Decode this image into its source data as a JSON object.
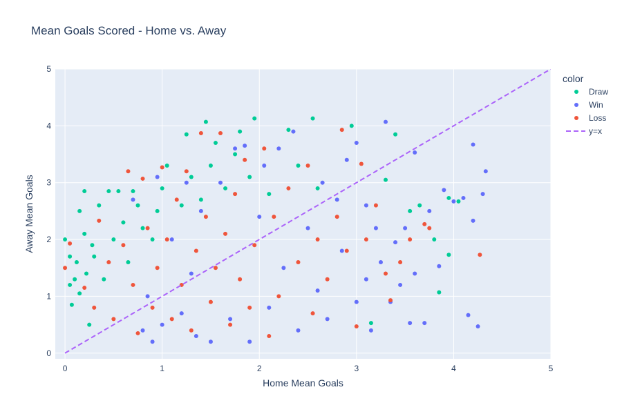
{
  "chart_data": {
    "type": "scatter",
    "title": "Mean Goals Scored - Home vs. Away",
    "xlabel": "Home Mean Goals",
    "ylabel": "Away Mean Goals",
    "xlim": [
      -0.1,
      5.0
    ],
    "ylim": [
      -0.1,
      5.0
    ],
    "xticks": [
      0,
      1,
      2,
      3,
      4,
      5
    ],
    "yticks": [
      0,
      1,
      2,
      3,
      4,
      5
    ],
    "grid": true,
    "plot_background": "#e5ecf6",
    "legend": {
      "title": "color",
      "placement": "right"
    },
    "series": [
      {
        "name": "Draw",
        "color": "#00cc96",
        "note_cloud": "dense cloud mostly x 0-2.5, y 0.5-3.2",
        "points": [
          [
            0.0,
            2.0
          ],
          [
            0.05,
            1.2
          ],
          [
            0.05,
            1.7
          ],
          [
            0.07,
            0.85
          ],
          [
            0.1,
            1.3
          ],
          [
            0.12,
            1.6
          ],
          [
            0.15,
            2.5
          ],
          [
            0.15,
            1.05
          ],
          [
            0.2,
            2.85
          ],
          [
            0.2,
            2.1
          ],
          [
            0.22,
            1.4
          ],
          [
            0.25,
            0.5
          ],
          [
            0.28,
            1.9
          ],
          [
            0.3,
            1.7
          ],
          [
            0.35,
            2.6
          ],
          [
            0.4,
            1.3
          ],
          [
            0.45,
            2.85
          ],
          [
            0.5,
            2.0
          ],
          [
            0.55,
            2.85
          ],
          [
            0.6,
            2.3
          ],
          [
            0.65,
            1.6
          ],
          [
            0.7,
            2.85
          ],
          [
            0.75,
            2.6
          ],
          [
            0.8,
            2.2
          ],
          [
            0.9,
            2.0
          ],
          [
            0.95,
            2.5
          ],
          [
            1.0,
            2.9
          ],
          [
            1.05,
            3.3
          ],
          [
            1.2,
            2.6
          ],
          [
            1.25,
            3.85
          ],
          [
            1.3,
            3.1
          ],
          [
            1.4,
            2.7
          ],
          [
            1.45,
            4.07
          ],
          [
            1.5,
            3.3
          ],
          [
            1.55,
            3.7
          ],
          [
            1.65,
            2.9
          ],
          [
            1.75,
            3.5
          ],
          [
            1.8,
            3.9
          ],
          [
            1.9,
            3.1
          ],
          [
            1.95,
            4.13
          ],
          [
            2.1,
            2.8
          ],
          [
            2.3,
            3.93
          ],
          [
            2.4,
            3.3
          ],
          [
            2.55,
            4.13
          ],
          [
            2.6,
            2.9
          ],
          [
            2.95,
            4.0
          ],
          [
            3.15,
            0.53
          ],
          [
            3.3,
            3.05
          ],
          [
            3.4,
            3.85
          ],
          [
            3.55,
            2.5
          ],
          [
            3.65,
            2.6
          ],
          [
            3.8,
            2.0
          ],
          [
            3.85,
            1.07
          ],
          [
            3.95,
            1.73
          ],
          [
            3.95,
            2.73
          ],
          [
            4.05,
            2.67
          ]
        ]
      },
      {
        "name": "Win",
        "color": "#636efa",
        "points": [
          [
            0.7,
            2.7
          ],
          [
            0.8,
            0.4
          ],
          [
            0.85,
            1.0
          ],
          [
            0.9,
            0.2
          ],
          [
            0.95,
            3.1
          ],
          [
            1.0,
            0.5
          ],
          [
            1.1,
            2.0
          ],
          [
            1.2,
            0.7
          ],
          [
            1.25,
            3.0
          ],
          [
            1.3,
            1.4
          ],
          [
            1.35,
            0.3
          ],
          [
            1.4,
            2.5
          ],
          [
            1.5,
            0.2
          ],
          [
            1.6,
            3.0
          ],
          [
            1.7,
            0.6
          ],
          [
            1.75,
            3.6
          ],
          [
            1.85,
            3.65
          ],
          [
            1.9,
            0.2
          ],
          [
            2.0,
            2.4
          ],
          [
            2.05,
            3.3
          ],
          [
            2.1,
            0.8
          ],
          [
            2.2,
            3.6
          ],
          [
            2.25,
            1.5
          ],
          [
            2.35,
            3.9
          ],
          [
            2.4,
            0.4
          ],
          [
            2.5,
            2.2
          ],
          [
            2.6,
            1.1
          ],
          [
            2.65,
            3.0
          ],
          [
            2.7,
            0.6
          ],
          [
            2.8,
            2.7
          ],
          [
            2.85,
            1.8
          ],
          [
            2.9,
            3.4
          ],
          [
            3.0,
            0.9
          ],
          [
            3.0,
            3.7
          ],
          [
            3.1,
            2.6
          ],
          [
            3.1,
            1.3
          ],
          [
            3.15,
            0.4
          ],
          [
            3.2,
            2.2
          ],
          [
            3.25,
            1.6
          ],
          [
            3.3,
            4.07
          ],
          [
            3.35,
            0.9
          ],
          [
            3.4,
            1.95
          ],
          [
            3.45,
            1.2
          ],
          [
            3.5,
            2.2
          ],
          [
            3.55,
            0.53
          ],
          [
            3.6,
            3.53
          ],
          [
            3.6,
            1.4
          ],
          [
            3.7,
            0.53
          ],
          [
            3.75,
            2.5
          ],
          [
            3.85,
            1.53
          ],
          [
            3.9,
            2.87
          ],
          [
            4.0,
            2.67
          ],
          [
            4.1,
            2.73
          ],
          [
            4.15,
            0.67
          ],
          [
            4.2,
            3.67
          ],
          [
            4.2,
            2.33
          ],
          [
            4.25,
            0.47
          ],
          [
            4.3,
            2.8
          ],
          [
            4.33,
            3.2
          ]
        ]
      },
      {
        "name": "Loss",
        "color": "#ef553b",
        "points": [
          [
            0.0,
            1.5
          ],
          [
            0.05,
            1.93
          ],
          [
            0.2,
            1.15
          ],
          [
            0.3,
            0.8
          ],
          [
            0.35,
            2.33
          ],
          [
            0.45,
            1.6
          ],
          [
            0.5,
            0.6
          ],
          [
            0.6,
            1.9
          ],
          [
            0.65,
            3.2
          ],
          [
            0.7,
            1.2
          ],
          [
            0.75,
            0.35
          ],
          [
            0.8,
            3.07
          ],
          [
            0.85,
            2.2
          ],
          [
            0.9,
            0.8
          ],
          [
            0.95,
            1.5
          ],
          [
            1.0,
            3.27
          ],
          [
            1.05,
            2.0
          ],
          [
            1.1,
            0.6
          ],
          [
            1.15,
            2.7
          ],
          [
            1.2,
            1.2
          ],
          [
            1.25,
            3.2
          ],
          [
            1.3,
            0.4
          ],
          [
            1.35,
            1.8
          ],
          [
            1.4,
            3.87
          ],
          [
            1.45,
            2.4
          ],
          [
            1.5,
            0.9
          ],
          [
            1.55,
            1.5
          ],
          [
            1.6,
            3.87
          ],
          [
            1.65,
            2.1
          ],
          [
            1.7,
            0.5
          ],
          [
            1.75,
            2.8
          ],
          [
            1.8,
            1.3
          ],
          [
            1.85,
            3.4
          ],
          [
            1.9,
            0.8
          ],
          [
            1.95,
            1.9
          ],
          [
            2.05,
            3.6
          ],
          [
            2.1,
            0.3
          ],
          [
            2.15,
            2.4
          ],
          [
            2.2,
            1.0
          ],
          [
            2.3,
            2.9
          ],
          [
            2.4,
            1.6
          ],
          [
            2.5,
            3.3
          ],
          [
            2.55,
            0.7
          ],
          [
            2.6,
            2.0
          ],
          [
            2.7,
            1.3
          ],
          [
            2.8,
            2.4
          ],
          [
            2.85,
            3.93
          ],
          [
            2.9,
            1.8
          ],
          [
            3.0,
            0.47
          ],
          [
            3.05,
            3.33
          ],
          [
            3.1,
            2.0
          ],
          [
            3.2,
            2.6
          ],
          [
            3.3,
            1.4
          ],
          [
            3.35,
            0.93
          ],
          [
            3.45,
            1.6
          ],
          [
            3.55,
            2.0
          ],
          [
            3.7,
            2.27
          ],
          [
            3.75,
            2.2
          ],
          [
            4.27,
            1.73
          ]
        ]
      },
      {
        "name": "y=x",
        "color": "#ab63fa",
        "style": "dashed",
        "x": [
          0,
          5
        ],
        "y": [
          0,
          5
        ]
      }
    ]
  }
}
